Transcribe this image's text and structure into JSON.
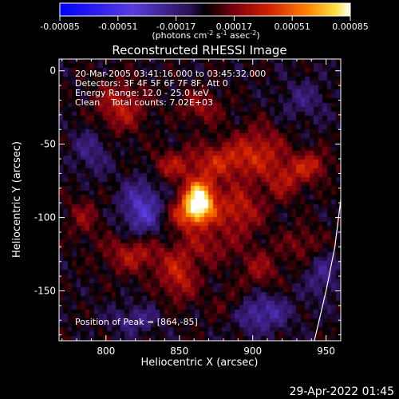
{
  "colorbar": {
    "ticks": [
      "-0.00085",
      "-0.00051",
      "-0.00017",
      "0.00017",
      "0.00051",
      "0.00085"
    ],
    "unit_parts": {
      "a": "(photons cm",
      "b": "-2",
      "c": " s",
      "d": "-1",
      "e": " asec",
      "f": "-2",
      "g": ")"
    }
  },
  "timestamp": "29-Apr-2022 01:45",
  "chart_data": {
    "type": "heatmap",
    "title": "Reconstructed RHESSI Image",
    "xlabel": "Heliocentric X (arcsec)",
    "ylabel": "Heliocentric Y (arcsec)",
    "xlim": [
      768,
      960
    ],
    "ylim": [
      -184,
      8
    ],
    "x_ticks": [
      800,
      850,
      900,
      950
    ],
    "y_ticks": [
      0,
      -50,
      -100,
      -150
    ],
    "zlim": [
      -0.00085,
      0.00085
    ],
    "annotations": [
      "20-Mar-2005 03:41:16.000 to 03:45:32.000",
      "Detectors: 3F 4F 5F 6F 7F 8F, Att 0",
      "Energy Range: 12.0 - 25.0 keV",
      "Clean    Total counts: 7.02E+03"
    ],
    "peak_label": "Position of Peak = [864,-85]",
    "peak": [
      864,
      -85
    ],
    "blobs": [
      {
        "x": 864,
        "y": -87,
        "amp": 0.0008,
        "sx": 7,
        "sy": 9
      },
      {
        "x": 858,
        "y": -98,
        "amp": 0.00045,
        "sx": 10,
        "sy": 8
      },
      {
        "x": 878,
        "y": -62,
        "amp": 0.00032,
        "sx": 14,
        "sy": 9
      },
      {
        "x": 890,
        "y": -95,
        "amp": 0.00032,
        "sx": 12,
        "sy": 12
      },
      {
        "x": 905,
        "y": -55,
        "amp": 0.0003,
        "sx": 12,
        "sy": 12
      },
      {
        "x": 922,
        "y": -75,
        "amp": 0.00025,
        "sx": 9,
        "sy": 9
      },
      {
        "x": 940,
        "y": -65,
        "amp": 0.0003,
        "sx": 9,
        "sy": 7
      },
      {
        "x": 845,
        "y": -65,
        "amp": 0.00025,
        "sx": 10,
        "sy": 7
      },
      {
        "x": 810,
        "y": -25,
        "amp": 0.0003,
        "sx": 12,
        "sy": 12
      },
      {
        "x": 820,
        "y": -125,
        "amp": 0.0003,
        "sx": 14,
        "sy": 9
      },
      {
        "x": 850,
        "y": -140,
        "amp": 0.00032,
        "sx": 9,
        "sy": 12
      },
      {
        "x": 870,
        "y": -120,
        "amp": 0.0002,
        "sx": 12,
        "sy": 8
      },
      {
        "x": 905,
        "y": -135,
        "amp": 0.0002,
        "sx": 10,
        "sy": 10
      },
      {
        "x": 865,
        "y": -25,
        "amp": 0.00022,
        "sx": 10,
        "sy": 8
      },
      {
        "x": 785,
        "y": -100,
        "amp": 0.00018,
        "sx": 8,
        "sy": 10
      },
      {
        "x": 935,
        "y": -118,
        "amp": 0.00018,
        "sx": 10,
        "sy": 8
      },
      {
        "x": 885,
        "y": -160,
        "amp": 0.00015,
        "sx": 10,
        "sy": 8
      },
      {
        "x": 825,
        "y": -95,
        "amp": -0.00035,
        "sx": 10,
        "sy": 14
      },
      {
        "x": 790,
        "y": -55,
        "amp": -0.00018,
        "sx": 9,
        "sy": 12
      },
      {
        "x": 935,
        "y": -20,
        "amp": -0.00015,
        "sx": 12,
        "sy": 10
      },
      {
        "x": 905,
        "y": -165,
        "amp": -0.0003,
        "sx": 14,
        "sy": 9
      },
      {
        "x": 820,
        "y": -170,
        "amp": -0.0002,
        "sx": 12,
        "sy": 7
      },
      {
        "x": 948,
        "y": -140,
        "amp": -0.0002,
        "sx": 8,
        "sy": 12
      }
    ],
    "limb_curve": [
      [
        960,
        -88
      ],
      [
        956,
        -120
      ],
      [
        950,
        -150
      ],
      [
        942,
        -184
      ]
    ]
  }
}
